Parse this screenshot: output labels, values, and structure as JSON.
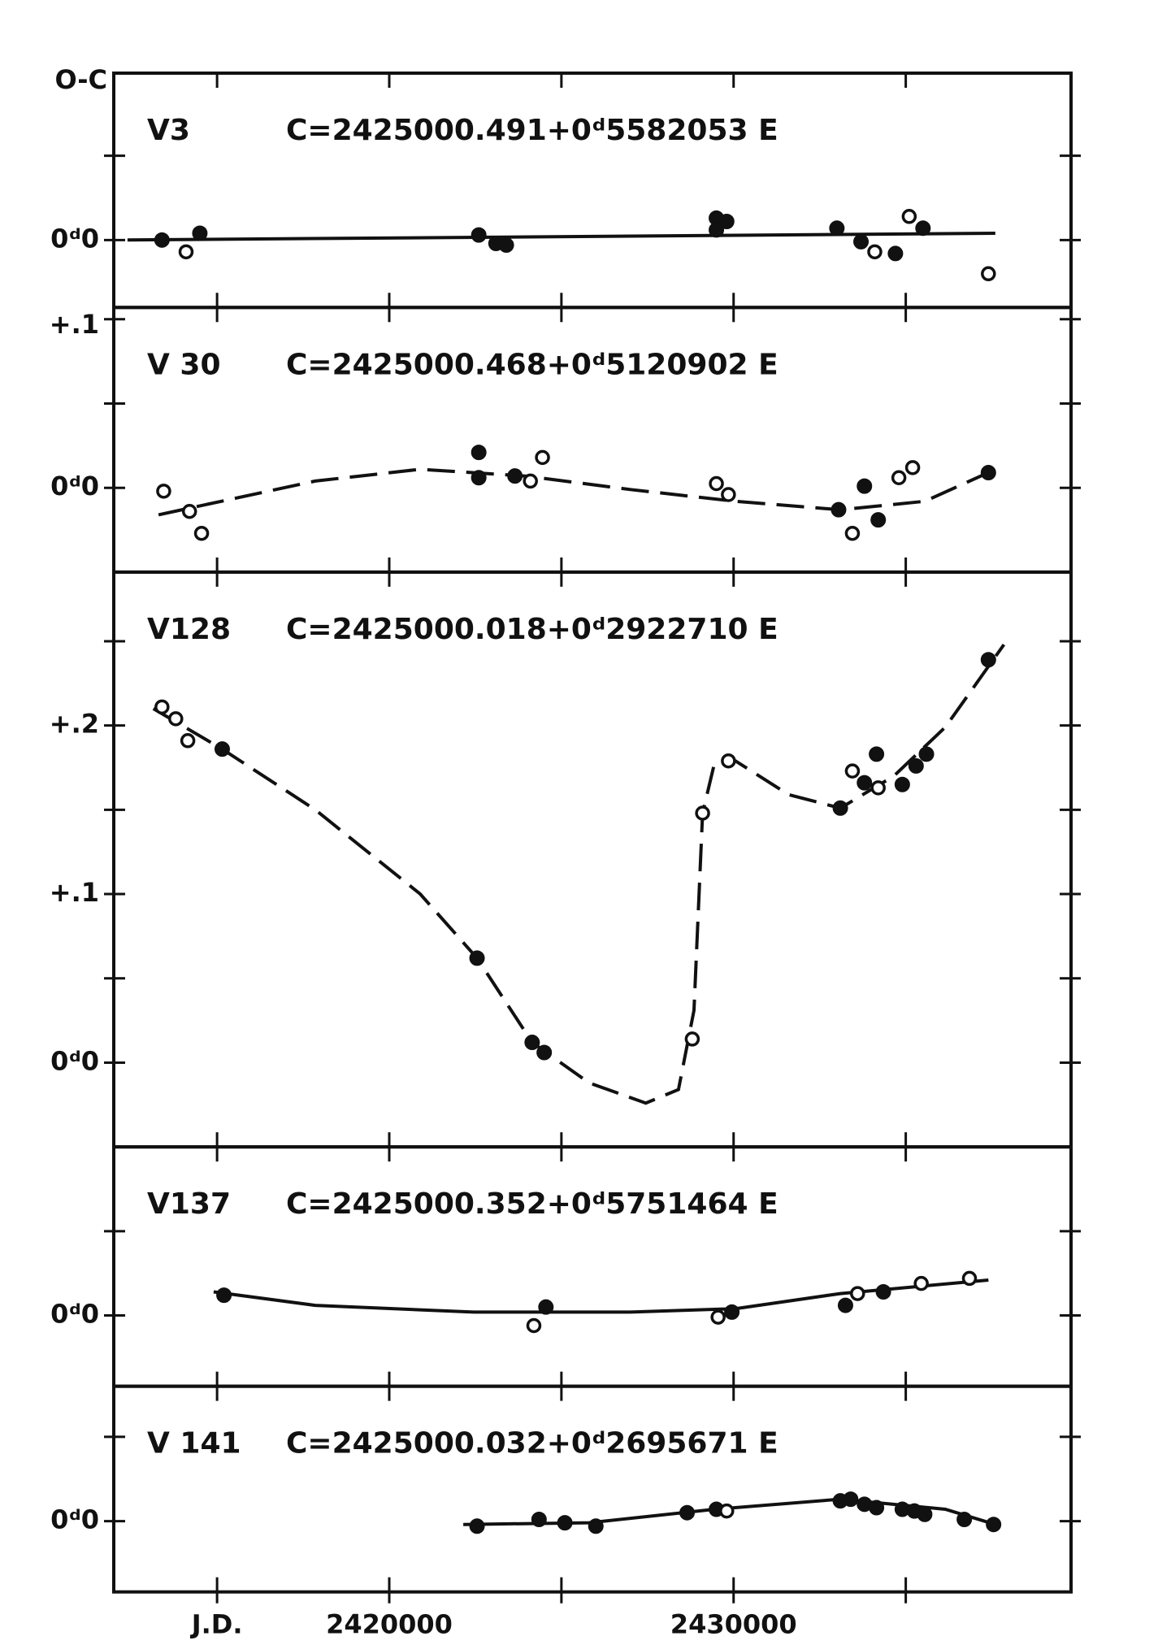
{
  "x_axis": {
    "xlim": [
      2412000,
      2439800
    ],
    "xticks": [
      {
        "value": 2415000,
        "label": "J.D."
      },
      2420000,
      2430000
    ],
    "minor_xticks": [
      2425000,
      2435000
    ]
  },
  "chart_data": [
    {
      "type": "scatter",
      "ylabel": "O-C",
      "label": "V3",
      "title": "C=2425000.491+0ᵈ5582053 E",
      "ylim": [
        -0.04,
        0.099
      ],
      "yticks": [
        {
          "value": 0,
          "label": "0ᵈ0"
        }
      ],
      "minor_yticks": [
        0.05
      ],
      "color": "#111",
      "series": [
        {
          "marker": "filled",
          "x": [
            2413400,
            2414500,
            2422600,
            2423100,
            2423400,
            2429500,
            2429800,
            2429500,
            2433000,
            2433700,
            2434700,
            2435500
          ],
          "values": [
            0.0,
            0.004,
            0.003,
            -0.002,
            -0.003,
            0.013,
            0.011,
            0.006,
            0.007,
            -0.001,
            -0.008,
            0.007
          ]
        },
        {
          "marker": "open",
          "x": [
            2414100,
            2434100,
            2435100,
            2437400
          ],
          "values": [
            -0.007,
            -0.007,
            0.014,
            -0.02
          ]
        }
      ],
      "curve": {
        "style": "solid",
        "x": [
          2412400,
          2437600
        ],
        "values": [
          0.0,
          0.004
        ]
      }
    },
    {
      "type": "scatter",
      "label": "V 30",
      "title": "C=2425000.468+0ᵈ5120902 E",
      "ylim": [
        -0.05,
        0.107
      ],
      "yticks": [
        {
          "value": 0,
          "label": "0ᵈ0"
        },
        {
          "value": 0.1,
          "label": "+.1"
        }
      ],
      "minor_yticks": [
        0.05
      ],
      "color": "#111",
      "series": [
        {
          "marker": "filled",
          "x": [
            2422600,
            2422600,
            2423650,
            2433050,
            2433800,
            2434200,
            2437400
          ],
          "values": [
            0.021,
            0.006,
            0.007,
            -0.013,
            0.001,
            -0.019,
            0.009
          ]
        },
        {
          "marker": "open",
          "x": [
            2413450,
            2414200,
            2414550,
            2424100,
            2424450,
            2429500,
            2429850,
            2433450,
            2434800,
            2435200
          ],
          "values": [
            -0.002,
            -0.014,
            -0.027,
            0.004,
            0.018,
            0.0025,
            -0.004,
            -0.027,
            0.006,
            0.012
          ]
        }
      ],
      "curve": {
        "style": "dashed",
        "x": [
          2413300,
          2417850,
          2420900,
          2423950,
          2427000,
          2430050,
          2433100,
          2435550,
          2437400
        ],
        "values": [
          -0.016,
          0.004,
          0.011,
          0.007,
          -0.001,
          -0.008,
          -0.013,
          -0.008,
          0.009
        ]
      }
    },
    {
      "type": "scatter",
      "label": "V128",
      "title": "C=2425000.018+0ᵈ2922710 E",
      "ylim": [
        -0.05,
        0.291
      ],
      "yticks": [
        {
          "value": 0,
          "label": "0ᵈ0"
        },
        {
          "value": 0.1,
          "label": "+.1"
        },
        {
          "value": 0.2,
          "label": "+.2"
        }
      ],
      "minor_yticks": [
        0.05,
        0.15,
        0.25
      ],
      "color": "#111",
      "series": [
        {
          "marker": "filled",
          "x": [
            2415150,
            2422550,
            2424150,
            2424500,
            2433100,
            2433800,
            2434150,
            2434900,
            2435300,
            2435600,
            2437400
          ],
          "values": [
            0.186,
            0.062,
            0.012,
            0.006,
            0.151,
            0.166,
            0.183,
            0.165,
            0.176,
            0.183,
            0.239
          ]
        },
        {
          "marker": "open",
          "x": [
            2413400,
            2413800,
            2414150,
            2428800,
            2429100,
            2429850,
            2433450,
            2434200
          ],
          "values": [
            0.211,
            0.204,
            0.191,
            0.014,
            0.148,
            0.179,
            0.173,
            0.163
          ]
        }
      ],
      "curve": {
        "style": "dashed",
        "x": [
          2413150,
          2415150,
          2417850,
          2420900,
          2422550,
          2424150,
          2425800,
          2427450,
          2428400,
          2428850,
          2429100,
          2429450,
          2430050,
          2431600,
          2433100,
          2434650,
          2436150,
          2437850
        ],
        "values": [
          0.21,
          0.186,
          0.15,
          0.1,
          0.062,
          0.012,
          -0.012,
          -0.024,
          -0.016,
          0.031,
          0.148,
          0.178,
          0.179,
          0.159,
          0.151,
          0.17,
          0.199,
          0.248
        ]
      }
    },
    {
      "type": "scatter",
      "label": "V137",
      "title": "C=2425000.352+0ᵈ5751464 E",
      "ylim": [
        -0.042,
        0.1
      ],
      "yticks": [
        {
          "value": 0,
          "label": "0ᵈ0"
        }
      ],
      "minor_yticks": [
        0.05
      ],
      "color": "#111",
      "series": [
        {
          "marker": "filled",
          "x": [
            2415200,
            2424550,
            2429950,
            2433250,
            2434350
          ],
          "values": [
            0.012,
            0.005,
            0.002,
            0.006,
            0.014
          ]
        },
        {
          "marker": "open",
          "x": [
            2424200,
            2429550,
            2433600,
            2435450,
            2436850
          ],
          "values": [
            -0.006,
            -0.001,
            0.013,
            0.019,
            0.022
          ]
        }
      ],
      "curve": {
        "style": "solid",
        "x": [
          2414900,
          2417850,
          2422450,
          2427000,
          2430050,
          2433100,
          2437400
        ],
        "values": [
          0.014,
          0.006,
          0.002,
          0.002,
          0.004,
          0.013,
          0.021
        ]
      }
    },
    {
      "type": "scatter",
      "label": "V 141",
      "title": "C=2425000.032+0ᵈ2695671 E",
      "ylim": [
        -0.042,
        0.08
      ],
      "yticks": [
        {
          "value": 0,
          "label": "0ᵈ0"
        }
      ],
      "minor_yticks": [
        0.05
      ],
      "color": "#111",
      "series": [
        {
          "marker": "filled",
          "x": [
            2422550,
            2424350,
            2425100,
            2426000,
            2428650,
            2429500,
            2433100,
            2433400,
            2433800,
            2434150,
            2434900,
            2435250,
            2435550,
            2436700,
            2437550
          ],
          "values": [
            -0.003,
            0.001,
            -0.001,
            -0.003,
            0.005,
            0.007,
            0.012,
            0.013,
            0.01,
            0.008,
            0.007,
            0.006,
            0.004,
            0.001,
            -0.002
          ]
        },
        {
          "marker": "open",
          "x": [
            2429800
          ],
          "values": [
            0.006
          ]
        }
      ],
      "curve": {
        "style": "solid",
        "x": [
          2422150,
          2425800,
          2429450,
          2433100,
          2436150,
          2437600
        ],
        "values": [
          -0.002,
          -0.001,
          0.007,
          0.013,
          0.007,
          -0.002
        ]
      }
    }
  ]
}
